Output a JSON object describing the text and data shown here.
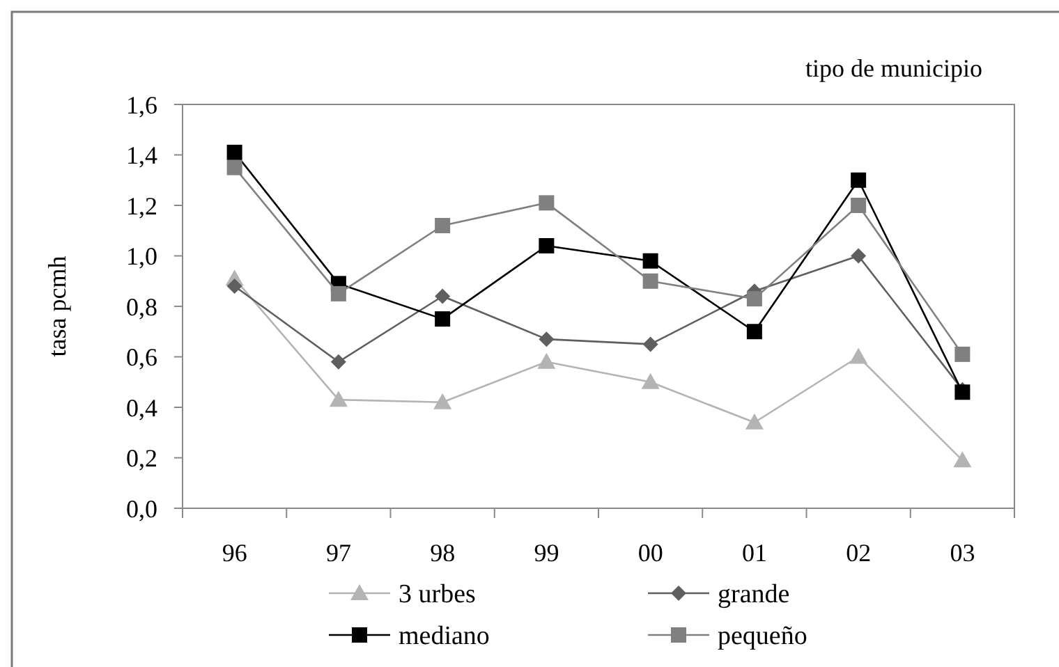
{
  "chart_data": {
    "type": "line",
    "title": "tipo de municipio",
    "ylabel": "tasa pcmh",
    "categories": [
      "96",
      "97",
      "98",
      "99",
      "00",
      "01",
      "02",
      "03"
    ],
    "series": [
      {
        "name": "3 urbes",
        "color": "#b4b4b4",
        "marker": "triangle",
        "values": [
          0.91,
          0.43,
          0.42,
          0.58,
          0.5,
          0.34,
          0.6,
          0.19
        ]
      },
      {
        "name": "grande",
        "color": "#5f5f5f",
        "marker": "diamond",
        "values": [
          0.88,
          0.58,
          0.84,
          0.67,
          0.65,
          0.86,
          1.0,
          0.47
        ]
      },
      {
        "name": "mediano",
        "color": "#000000",
        "marker": "square",
        "values": [
          1.41,
          0.89,
          0.75,
          1.04,
          0.98,
          0.7,
          1.3,
          0.46
        ]
      },
      {
        "name": "pequeño",
        "color": "#808080",
        "marker": "square",
        "values": [
          1.35,
          0.85,
          1.12,
          1.21,
          0.9,
          0.83,
          1.2,
          0.61
        ]
      }
    ],
    "ylim": [
      0,
      1.6
    ],
    "yticks": [
      {
        "value": 0,
        "label": "0,0"
      },
      {
        "value": 0.2,
        "label": "0,2"
      },
      {
        "value": 0.4,
        "label": "0,4"
      },
      {
        "value": 0.6,
        "label": "0,6"
      },
      {
        "value": 0.8,
        "label": "0,8"
      },
      {
        "value": 1.0,
        "label": "1,0"
      },
      {
        "value": 1.2,
        "label": "1,2"
      },
      {
        "value": 1.4,
        "label": "1,4"
      },
      {
        "value": 1.6,
        "label": "1,6"
      }
    ],
    "grid": false,
    "legend": "bottom"
  }
}
